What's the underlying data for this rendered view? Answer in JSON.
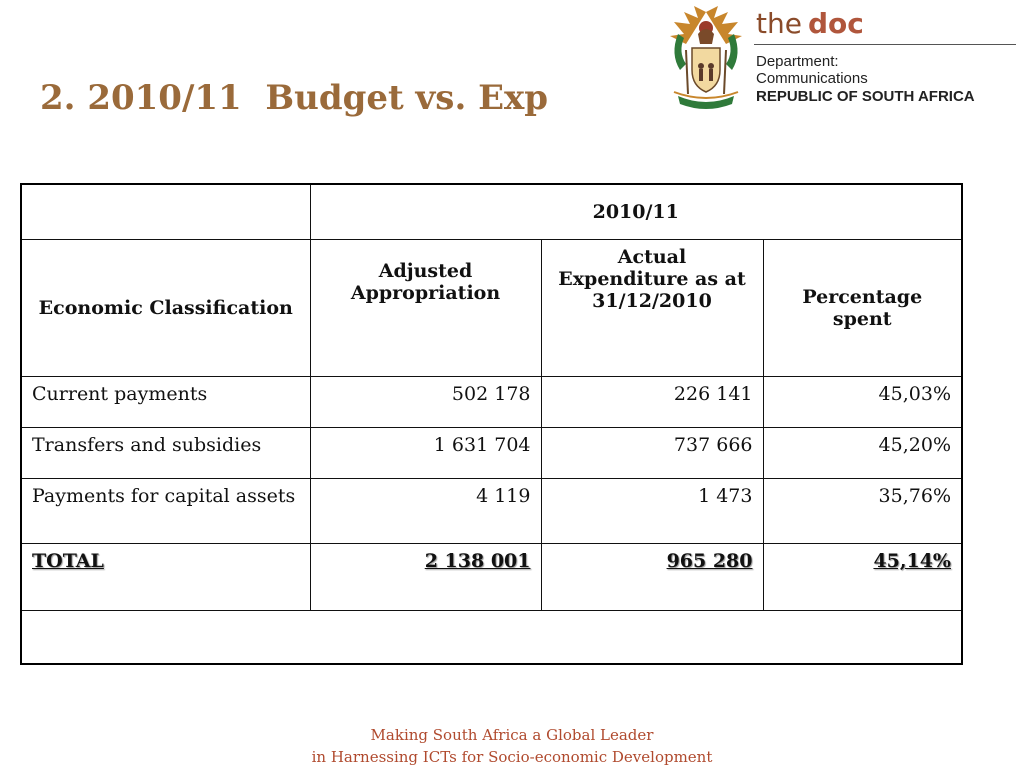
{
  "slide": {
    "title": "2. 2010/11  Budget vs. Exp"
  },
  "logo": {
    "brand_the": "the",
    "brand_doc": "doc",
    "dept_line1": "Department:",
    "dept_line2": "Communications",
    "dept_line3": "REPUBLIC OF SOUTH AFRICA",
    "icon": "coat-of-arms-icon"
  },
  "table": {
    "year_header": "2010/11",
    "col_classification": "Economic Classification",
    "col_adjusted": "Adjusted Appropriation",
    "col_actual": "Actual Expenditure as at 31/12/2010",
    "col_percentage": "Percentage spent",
    "rows": [
      {
        "label": "Current payments",
        "adjusted": "502 178",
        "actual": "226 141",
        "pct": "45,03%"
      },
      {
        "label": "Transfers and subsidies",
        "adjusted": "1 631 704",
        "actual": "737 666",
        "pct": "45,20%"
      },
      {
        "label": "Payments for capital assets",
        "adjusted": "4 119",
        "actual": "1 473",
        "pct": "35,76%"
      }
    ],
    "total": {
      "label": "TOTAL",
      "adjusted": "2 138 001",
      "actual": "965 280",
      "pct": "45,14%"
    }
  },
  "footer": {
    "line1": "Making South Africa a Global Leader",
    "line2": "in Harnessing ICTs for Socio-economic Development"
  }
}
